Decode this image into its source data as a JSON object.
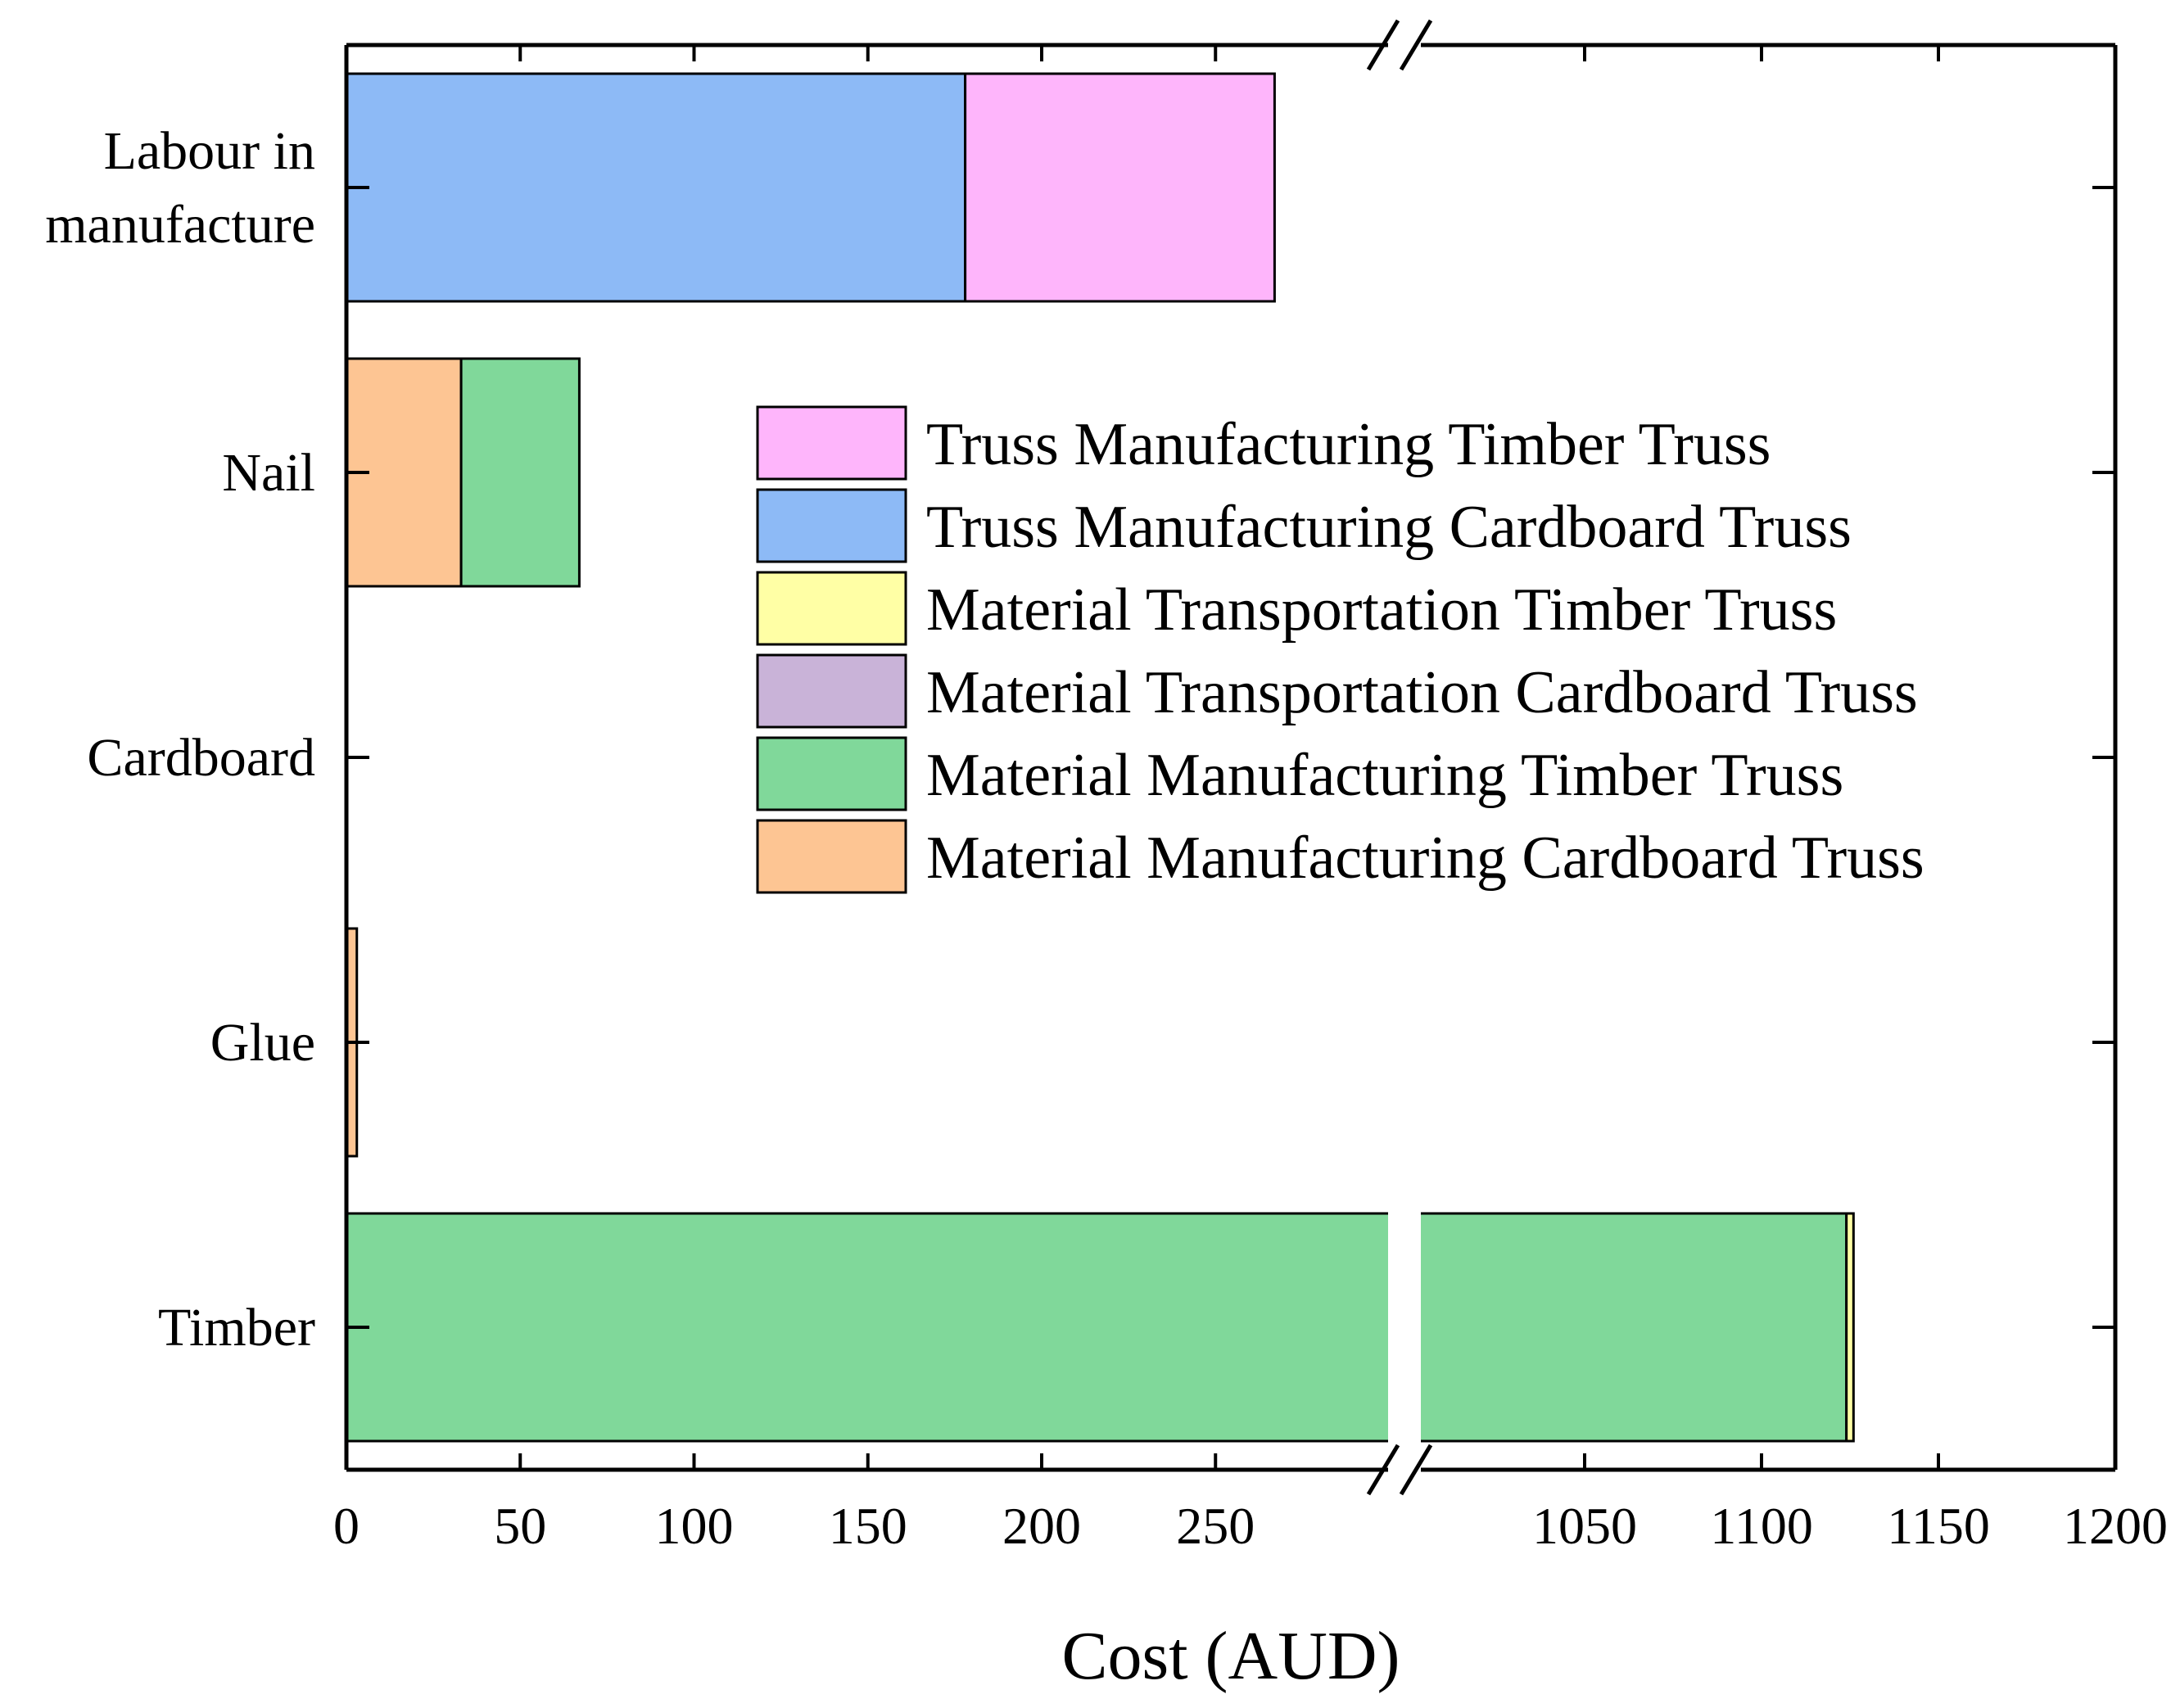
{
  "chart_data": {
    "type": "bar",
    "orientation": "horizontal",
    "stacked": true,
    "title": "",
    "xlabel": "Cost (AUD)",
    "ylabel": "",
    "categories": [
      "Labour in manufacture",
      "Nail",
      "Cardboard",
      "Glue",
      "Timber"
    ],
    "category_lines": [
      [
        "Labour in",
        "manufacture"
      ],
      [
        "Nail"
      ],
      [
        "Cardboard"
      ],
      [
        "Glue"
      ],
      [
        "Timber"
      ]
    ],
    "x_axis": {
      "broken": true,
      "segments": [
        {
          "range": [
            0,
            300
          ],
          "ticks": [
            0,
            50,
            100,
            150,
            200,
            250
          ]
        },
        {
          "range": [
            1000,
            1200
          ],
          "ticks": [
            1050,
            1100,
            1150,
            1200
          ]
        }
      ],
      "tick_labels": [
        "0",
        "50",
        "100",
        "150",
        "200",
        "250",
        "1050",
        "1100",
        "1150",
        "1200"
      ]
    },
    "series": [
      {
        "name": "Material Manufacturing Cardboard Truss",
        "color": "#FDC593",
        "values": [
          0,
          33,
          0,
          3,
          0
        ]
      },
      {
        "name": "Material Manufacturing Timber Truss",
        "color": "#80D89A",
        "values": [
          0,
          34,
          0,
          0,
          1124
        ]
      },
      {
        "name": "Material Transportation Cardboard Truss",
        "color": "#C9B3D8",
        "values": [
          0,
          0,
          0,
          0,
          0
        ]
      },
      {
        "name": "Material Transportation Timber Truss",
        "color": "#FFFFA5",
        "values": [
          0,
          0,
          0,
          0,
          2
        ]
      },
      {
        "name": "Truss Manufacturing Cardboard Truss",
        "color": "#8DBAF6",
        "values": [
          178,
          0,
          0,
          0,
          0
        ]
      },
      {
        "name": "Truss Manufacturing Timber Truss",
        "color": "#FEB5FB",
        "values": [
          89,
          0,
          0,
          0,
          0
        ]
      }
    ],
    "legend": {
      "position": "center-right",
      "entries": [
        "Truss Manufacturing Timber Truss",
        "Truss Manufacturing Cardboard Truss",
        "Material Transportation Timber Truss",
        "Material Transportation Cardboard Truss",
        "Material Manufacturing Timber Truss",
        "Material Manufacturing Cardboard Truss"
      ]
    },
    "grid": false
  }
}
